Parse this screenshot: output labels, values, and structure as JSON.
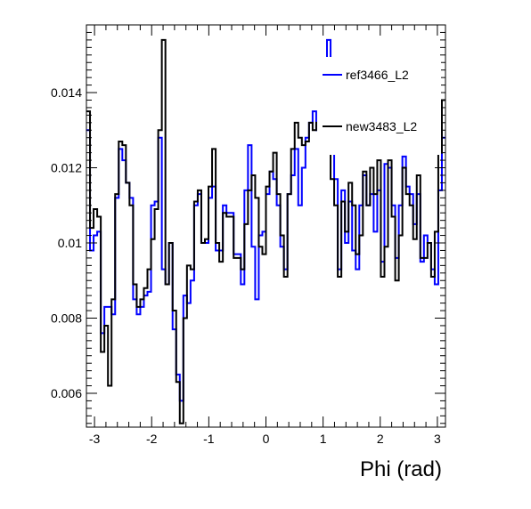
{
  "chart_data": {
    "type": "line",
    "style": "step-histogram",
    "title": "",
    "xlabel": "Phi (rad)",
    "ylabel": "",
    "xlim": [
      -3.1416,
      3.1416
    ],
    "ylim": [
      0.0051,
      0.0158
    ],
    "x_ticks": [
      -3,
      -2,
      -1,
      0,
      1,
      2,
      3
    ],
    "x_tick_labels": [
      "-3",
      "-2",
      "-1",
      "0",
      "1",
      "2",
      "3"
    ],
    "y_ticks": [
      0.006,
      0.008,
      0.01,
      0.012,
      0.014
    ],
    "y_tick_labels": [
      "0.006",
      "0.008",
      "0.01",
      "0.012",
      "0.014"
    ],
    "grid": false,
    "legend_position": "top-right",
    "bins": 100,
    "series": [
      {
        "name": "ref3466_L2",
        "color": "#0000ff",
        "values": [
          0.013,
          0.0098,
          0.0102,
          0.0103,
          0.0076,
          0.0083,
          0.0083,
          0.0081,
          0.0112,
          0.0125,
          0.0122,
          0.0116,
          0.0112,
          0.0085,
          0.0081,
          0.0083,
          0.0086,
          0.0087,
          0.011,
          0.0111,
          0.0128,
          0.0093,
          0.0089,
          0.01,
          0.0077,
          0.0065,
          0.0058,
          0.0086,
          0.0084,
          0.009,
          0.011,
          0.0113,
          0.01,
          0.01,
          0.0112,
          0.0115,
          0.0098,
          0.0098,
          0.011,
          0.0108,
          0.0108,
          0.0097,
          0.0097,
          0.0089,
          0.0114,
          0.0126,
          0.0099,
          0.0085,
          0.0102,
          0.0103,
          0.0113,
          0.0119,
          0.0117,
          0.011,
          0.0099,
          0.0093,
          0.0113,
          0.0118,
          0.0125,
          0.011,
          0.012,
          0.0128,
          0.0132,
          0.0135,
          0.013,
          0.0127,
          0.0137,
          0.0154,
          0.013,
          0.0117,
          0.0093,
          0.0114,
          0.01,
          0.0111,
          0.0098,
          0.0093,
          0.011,
          0.0118,
          0.011,
          0.0113,
          0.0103,
          0.0114,
          0.0095,
          0.0121,
          0.012,
          0.011,
          0.0096,
          0.011,
          0.0123,
          0.0115,
          0.0113,
          0.0105,
          0.0113,
          0.0095,
          0.0102,
          0.01,
          0.0093,
          0.0089,
          0.0114,
          0.0128
        ]
      },
      {
        "name": "new3483_L2",
        "color": "#000000",
        "values": [
          0.0135,
          0.0104,
          0.0109,
          0.0107,
          0.0071,
          0.0078,
          0.0062,
          0.0085,
          0.0113,
          0.0127,
          0.0126,
          0.0116,
          0.011,
          0.0089,
          0.0083,
          0.0085,
          0.0088,
          0.0093,
          0.0101,
          0.0109,
          0.013,
          0.0154,
          0.0089,
          0.01,
          0.0082,
          0.0063,
          0.0052,
          0.008,
          0.0094,
          0.0093,
          0.0111,
          0.0114,
          0.01,
          0.0101,
          0.0115,
          0.0125,
          0.01,
          0.0095,
          0.0108,
          0.0107,
          0.0107,
          0.0096,
          0.0096,
          0.0093,
          0.0105,
          0.0114,
          0.0118,
          0.0112,
          0.0099,
          0.0097,
          0.0115,
          0.0119,
          0.0124,
          0.0113,
          0.0102,
          0.0091,
          0.0113,
          0.0125,
          0.0132,
          0.0128,
          0.0126,
          0.0127,
          0.0132,
          0.013,
          0.0132,
          0.0131,
          0.0137,
          0.0135,
          0.0117,
          0.011,
          0.0091,
          0.0111,
          0.0103,
          0.0116,
          0.011,
          0.0097,
          0.0102,
          0.0119,
          0.011,
          0.012,
          0.0113,
          0.0122,
          0.0091,
          0.0099,
          0.0122,
          0.0107,
          0.009,
          0.0102,
          0.012,
          0.0113,
          0.011,
          0.0101,
          0.0118,
          0.0096,
          0.0096,
          0.01,
          0.0091,
          0.0103,
          0.0124,
          0.0138
        ]
      }
    ]
  }
}
